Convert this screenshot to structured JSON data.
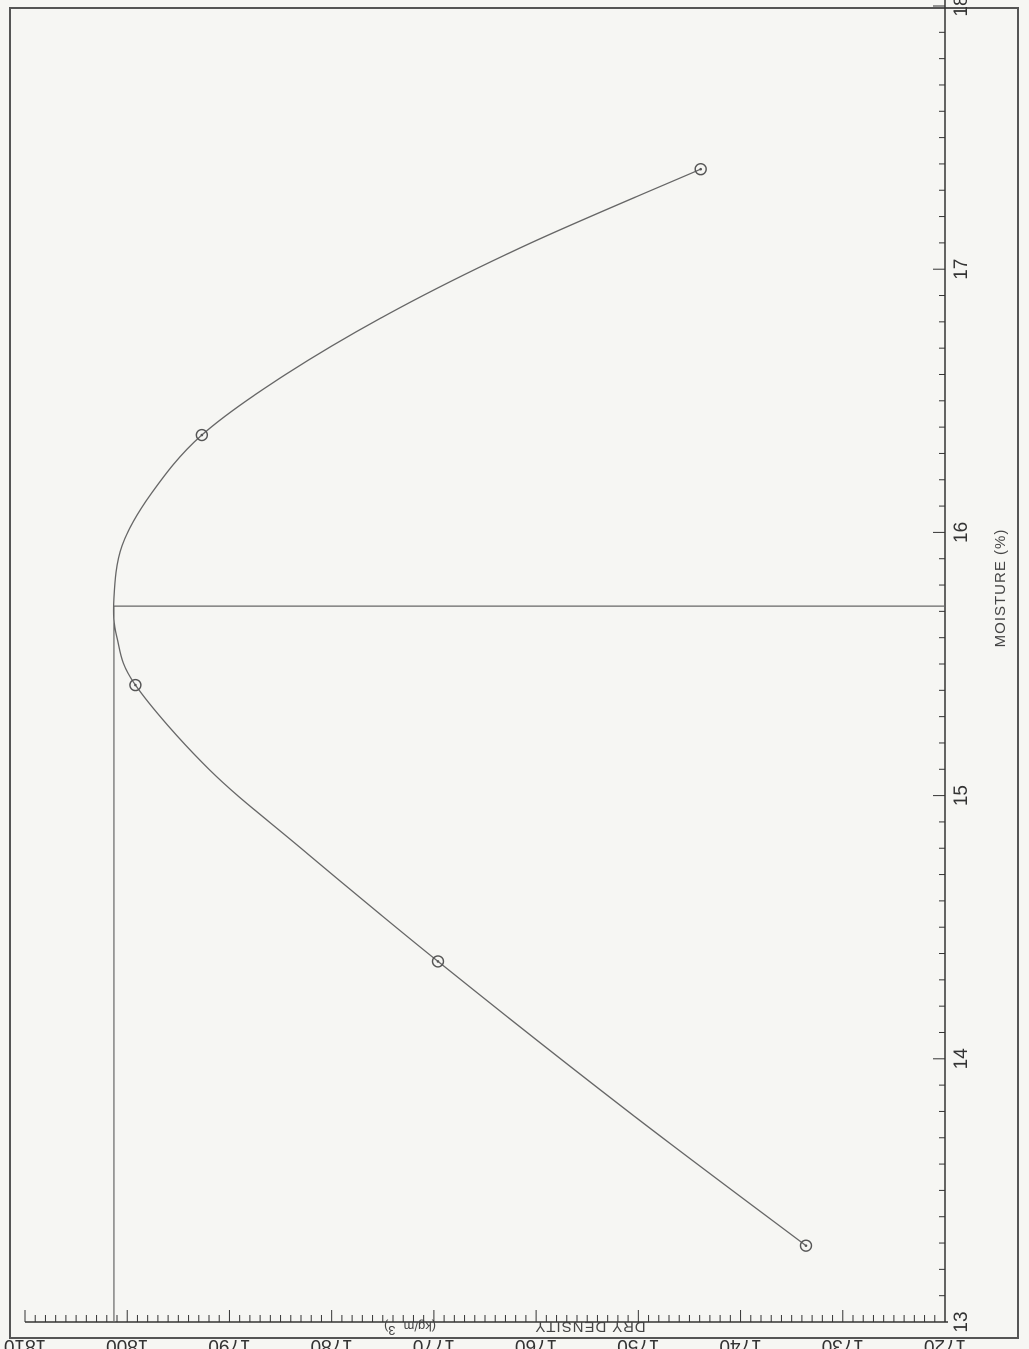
{
  "chart_data": {
    "type": "scatter",
    "orientation": "rotated-90",
    "xlabel": "MOISTURE  (%)",
    "ylabel": "DRY DENSITY",
    "ylabel_units": "(kg/m",
    "ylabel_units_exp": "3",
    "ylabel_units_close": ")",
    "xlim": [
      13,
      18
    ],
    "ylim": [
      1720,
      1810
    ],
    "x_ticks": [
      "13",
      "14",
      "15",
      "16",
      "17",
      "18"
    ],
    "y_ticks": [
      "1720",
      "1730",
      "1740",
      "1750",
      "1760",
      "1770",
      "1780",
      "1790",
      "1800",
      "1810"
    ],
    "series": [
      {
        "points": [
          {
            "x": 13.29,
            "y": 1733.6
          },
          {
            "x": 14.37,
            "y": 1769.6
          },
          {
            "x": 15.42,
            "y": 1799.2
          },
          {
            "x": 16.37,
            "y": 1792.7
          },
          {
            "x": 17.38,
            "y": 1743.9
          }
        ],
        "fit_curve": [
          {
            "x": 13.29,
            "y": 1733.6
          },
          {
            "x": 13.8,
            "y": 1751.0
          },
          {
            "x": 14.37,
            "y": 1769.6
          },
          {
            "x": 14.8,
            "y": 1783.0
          },
          {
            "x": 15.1,
            "y": 1792.0
          },
          {
            "x": 15.42,
            "y": 1799.2
          },
          {
            "x": 15.6,
            "y": 1801.0
          },
          {
            "x": 15.75,
            "y": 1801.3
          },
          {
            "x": 15.95,
            "y": 1800.5
          },
          {
            "x": 16.15,
            "y": 1797.6
          },
          {
            "x": 16.37,
            "y": 1792.7
          },
          {
            "x": 16.6,
            "y": 1784.5
          },
          {
            "x": 16.85,
            "y": 1773.5
          },
          {
            "x": 17.1,
            "y": 1760.5
          },
          {
            "x": 17.38,
            "y": 1743.9
          }
        ]
      }
    ],
    "optimum": {
      "moisture": 15.72,
      "dry_density": 1801.3
    },
    "grid": false,
    "colors": {
      "line": "#666666",
      "marker": "#555555",
      "axis": "#333333",
      "border": "#444444"
    }
  }
}
